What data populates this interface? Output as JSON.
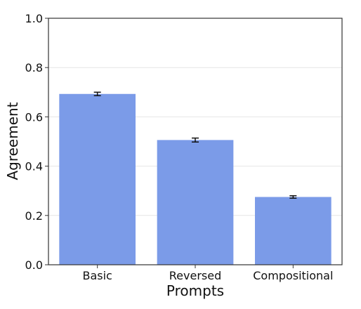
{
  "chart_data": {
    "type": "bar",
    "title": "",
    "xlabel": "Prompts",
    "ylabel": "Agreement",
    "categories": [
      "Basic",
      "Reversed",
      "Compositional"
    ],
    "values": [
      0.693,
      0.506,
      0.275
    ],
    "error": [
      0.007,
      0.008,
      0.005
    ],
    "ylim": [
      0,
      1.0
    ],
    "yticks": [
      0.0,
      0.2,
      0.4,
      0.6,
      0.8,
      1.0
    ],
    "ytick_labels": [
      "0.0",
      "0.2",
      "0.4",
      "0.6",
      "0.8",
      "1.0"
    ],
    "grid": true,
    "bar_color": "#7b9be8",
    "error_color": "#111111",
    "grid_color": "#e6e6e6",
    "axis_color": "#333333"
  }
}
